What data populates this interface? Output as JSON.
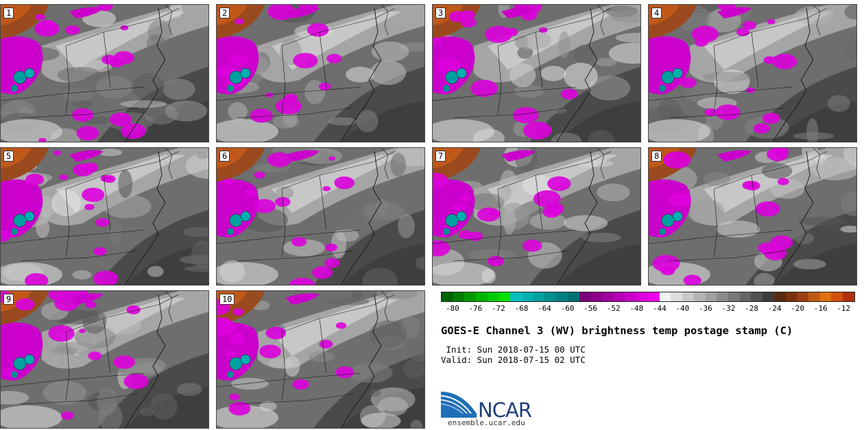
{
  "panels": [
    {
      "label": "1"
    },
    {
      "label": "2"
    },
    {
      "label": "3"
    },
    {
      "label": "4"
    },
    {
      "label": "5"
    },
    {
      "label": "6"
    },
    {
      "label": "7"
    },
    {
      "label": "8"
    },
    {
      "label": "9"
    },
    {
      "label": "10"
    }
  ],
  "colorbar": {
    "colors": [
      "#006400",
      "#007f00",
      "#009900",
      "#00b300",
      "#00cc00",
      "#00e000",
      "#00bfbf",
      "#00b0b0",
      "#00a0a0",
      "#009090",
      "#008080",
      "#007070",
      "#7a0078",
      "#8c008c",
      "#a000a0",
      "#b400b4",
      "#c800c8",
      "#dc00dc",
      "#ee00ee",
      "#f2f2f2",
      "#dddddd",
      "#c8c8c8",
      "#b4b4b4",
      "#a0a0a0",
      "#8c8c8c",
      "#787878",
      "#646464",
      "#505050",
      "#3c3c3c",
      "#5a2a10",
      "#7a3210",
      "#9a4010",
      "#c05a10",
      "#e07010",
      "#d05010",
      "#b03010"
    ],
    "ticks": [
      "-80",
      "-76",
      "-72",
      "-68",
      "-64",
      "-60",
      "-56",
      "-52",
      "-48",
      "-44",
      "-40",
      "-36",
      "-32",
      "-28",
      "-24",
      "-20",
      "-16",
      "-12"
    ],
    "min": -82,
    "max": -10
  },
  "title": "GOES-E Channel 3 (WV) brightness temp postage stamp (C)",
  "init": " Init: Sun 2018-07-15 00 UTC",
  "valid": "Valid: Sun 2018-07-15 02 UTC",
  "logo": {
    "name": "NCAR",
    "url": "ensemble.ucar.edu"
  }
}
